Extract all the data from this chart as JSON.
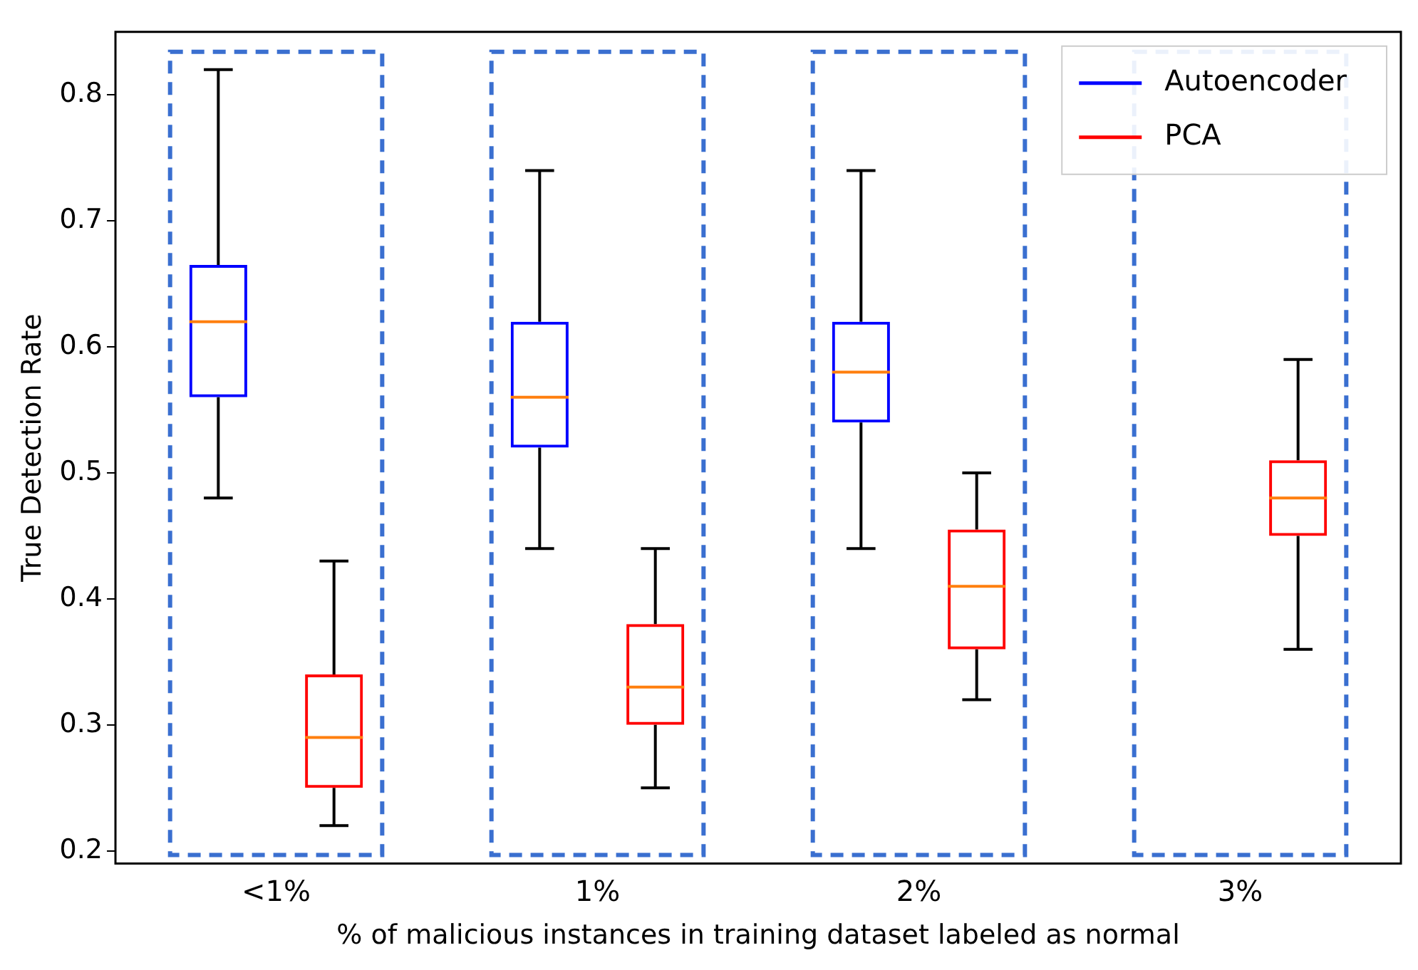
{
  "chart_data": {
    "type": "box",
    "xlabel": "% of malicious instances in training dataset labeled as normal",
    "ylabel": "True Detection Rate",
    "categories": [
      "<1%",
      "1%",
      "2%",
      "3%"
    ],
    "series": [
      {
        "name": "Autoencoder",
        "color": "#0000ff",
        "boxes": [
          {
            "low": 0.48,
            "q1": 0.56,
            "median": 0.62,
            "q3": 0.665,
            "high": 0.82
          },
          {
            "low": 0.44,
            "q1": 0.52,
            "median": 0.56,
            "q3": 0.62,
            "high": 0.74
          },
          {
            "low": 0.44,
            "q1": 0.54,
            "median": 0.58,
            "q3": 0.62,
            "high": 0.74
          },
          null
        ]
      },
      {
        "name": "PCA",
        "color": "#ff0000",
        "boxes": [
          {
            "low": 0.22,
            "q1": 0.25,
            "median": 0.29,
            "q3": 0.34,
            "high": 0.43
          },
          {
            "low": 0.25,
            "q1": 0.3,
            "median": 0.33,
            "q3": 0.38,
            "high": 0.44
          },
          {
            "low": 0.32,
            "q1": 0.36,
            "median": 0.41,
            "q3": 0.455,
            "high": 0.5
          },
          {
            "low": 0.36,
            "q1": 0.45,
            "median": 0.48,
            "q3": 0.51,
            "high": 0.59
          }
        ]
      }
    ],
    "ylim": [
      0.19,
      0.85
    ],
    "yticks": [
      0.2,
      0.3,
      0.4,
      0.5,
      0.6,
      0.7,
      0.8
    ],
    "grid": false,
    "legend": "top right"
  }
}
